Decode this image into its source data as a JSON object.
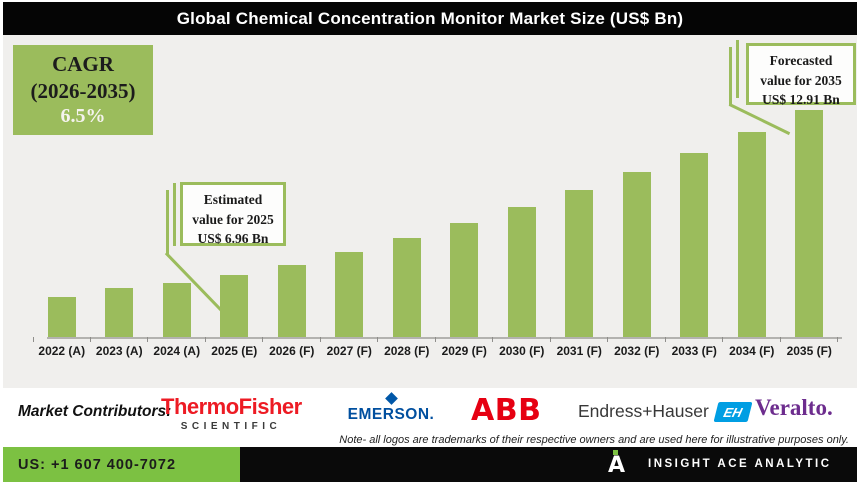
{
  "title": "Global Chemical Concentration Monitor Market Size (US$ Bn)",
  "cagr_box": {
    "line1": "CAGR",
    "line2": "(2026-2035)",
    "line3": "6.5%"
  },
  "callouts": {
    "estimated": {
      "line1": "Estimated",
      "line2": "value for 2025",
      "line3": "US$ 6.96 Bn"
    },
    "forecasted": {
      "line1": "Forecasted",
      "line2": "value for 2035",
      "line3": "US$ 12.91 Bn"
    }
  },
  "chart_data": {
    "type": "bar",
    "title": "Global Chemical Concentration Monitor Market Size (US$ Bn)",
    "unit": "US$ Bn",
    "categories": [
      "2022 (A)",
      "2023 (A)",
      "2024 (A)",
      "2025 (E)",
      "2026 (F)",
      "2027 (F)",
      "2028 (F)",
      "2029 (F)",
      "2030 (F)",
      "2031 (F)",
      "2032 (F)",
      "2033 (F)",
      "2034 (F)",
      "2035 (F)"
    ],
    "values": [
      6.18,
      6.49,
      6.69,
      6.96,
      7.32,
      7.8,
      8.31,
      8.85,
      9.42,
      10.04,
      10.69,
      11.38,
      12.12,
      12.91
    ],
    "labeled_points": {
      "2025 (E)": 6.96,
      "2035 (F)": 12.91
    },
    "cagr_2026_2035_pct": 6.5,
    "xlabel": "",
    "ylabel": "",
    "ylim": [
      4.7,
      13.5
    ],
    "grid": false,
    "legend": false,
    "bar_color": "#9bbc5c"
  },
  "contributors": {
    "label": "Market Contributors:",
    "logos": {
      "thermo": {
        "name": "Thermo Fisher Scientific",
        "line1": "ThermoFisher",
        "line2": "SCIENTIFIC"
      },
      "emerson": {
        "name": "Emerson",
        "text": "EMERSON."
      },
      "abb": {
        "name": "ABB",
        "text": "ABB"
      },
      "endress": {
        "name": "Endress+Hauser",
        "text": "Endress+Hauser",
        "badge": "EH"
      },
      "veralto": {
        "name": "Veralto",
        "text": "Veralto."
      }
    },
    "note": "Note- all logos are trademarks of their respective owners and are used here for illustrative purposes only."
  },
  "footer": {
    "phone": "US: +1 607 400-7072",
    "brand": "INSIGHT ACE ANALYTIC",
    "logo_letter": "A"
  },
  "colors": {
    "bar_green": "#9bbc5c",
    "footer_green": "#7cc142",
    "title_bg": "#050505",
    "chart_bg": "#f0efed",
    "thermo_red": "#ed1b24",
    "abb_red": "#e60012",
    "emerson_blue": "#004f9f",
    "endress_blue": "#009ee3",
    "veralto_purple": "#6d2d8e"
  }
}
